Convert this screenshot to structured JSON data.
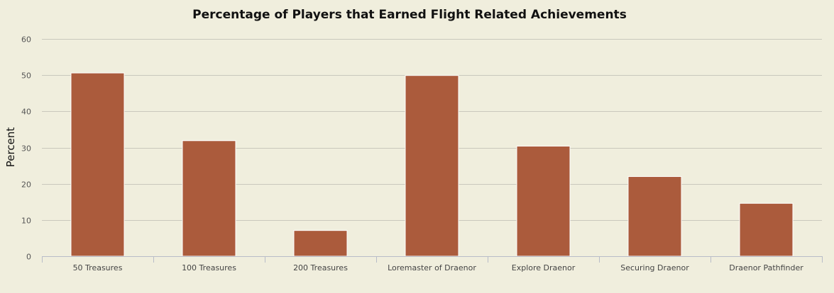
{
  "chart_data": {
    "type": "bar",
    "title": "Percentage of Players that Earned Flight Related Achievements",
    "xlabel": "",
    "ylabel": "Percent",
    "categories": [
      "50 Treasures",
      "100 Treasures",
      "200 Treasures",
      "Loremaster of Draenor",
      "Explore Draenor",
      "Securing Draenor",
      "Draenor Pathfinder"
    ],
    "values": [
      50.6,
      31.9,
      7.1,
      49.9,
      30.4,
      22.0,
      14.6
    ],
    "ylim": [
      0,
      60
    ],
    "yticks": [
      0,
      10,
      20,
      30,
      40,
      50,
      60
    ],
    "grid": true,
    "legend": "none",
    "bar_color": "#ab5b3c"
  }
}
